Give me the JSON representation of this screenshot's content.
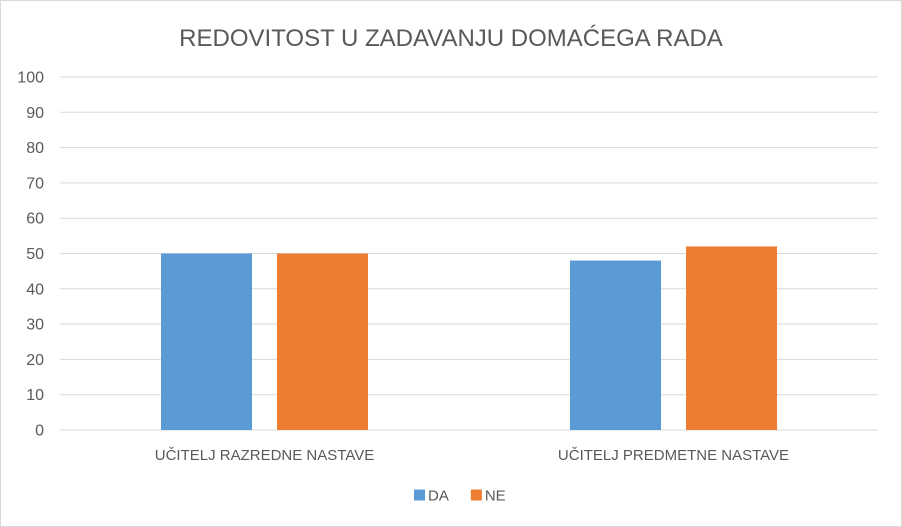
{
  "chart_data": {
    "type": "bar",
    "title": "REDOVITOST U ZADAVANJU DOMAĆEGA RADA",
    "xlabel": "",
    "ylabel": "",
    "categories": [
      "UČITELJ RAZREDNE NASTAVE",
      "UČITELJ PREDMETNE NASTAVE"
    ],
    "series": [
      {
        "name": "DA",
        "values": [
          50,
          48
        ],
        "color": "#5b9bd5"
      },
      {
        "name": "NE",
        "values": [
          50,
          52
        ],
        "color": "#ed7d31"
      }
    ],
    "ylim": [
      0,
      100
    ],
    "yticks": [
      0,
      10,
      20,
      30,
      40,
      50,
      60,
      70,
      80,
      90,
      100
    ],
    "grid": true,
    "legend_position": "bottom"
  }
}
